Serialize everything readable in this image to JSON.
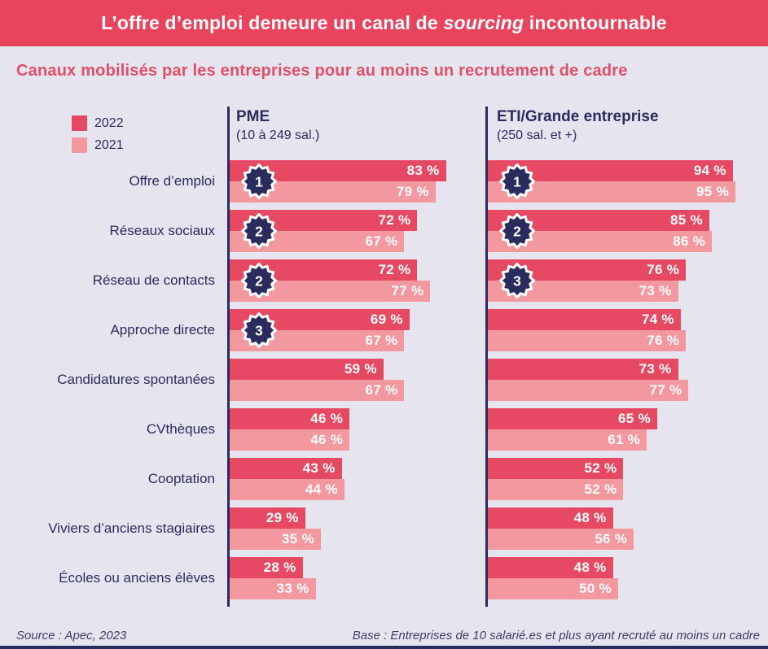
{
  "title": {
    "prefix": "L’offre d’emploi demeure un canal de ",
    "italic": "sourcing",
    "suffix": " incontournable"
  },
  "subtitle": "Canaux mobilisés par les entreprises pour au moins un recrutement de cadre",
  "legend": [
    {
      "label": "2022",
      "color": "#e64a63"
    },
    {
      "label": "2021",
      "color": "#f3989f"
    }
  ],
  "panels": [
    {
      "name": "PME",
      "sub": "(10 à 249 sal.)"
    },
    {
      "name": "ETI/Grande entreprise",
      "sub": "(250 sal. et +)"
    }
  ],
  "footer": {
    "source": "Source : Apec, 2023",
    "base": "Base : Entreprises de 10 salarié.es et plus ayant recruté au moins un cadre"
  },
  "colors": {
    "banner": "#e8445e",
    "bar_2022": "#e64a63",
    "bar_2021": "#f3989f",
    "navy": "#2b2c5e",
    "background": "#e6e4ee",
    "subtitle_text": "#e04f68"
  },
  "chart_data": {
    "type": "bar",
    "orientation": "horizontal",
    "unit": "%",
    "xlim": [
      0,
      100
    ],
    "title": "Canaux mobilisés par les entreprises pour au moins un recrutement de cadre",
    "legend_entries": [
      "2022",
      "2021"
    ],
    "legend_position": "top-left",
    "grid": false,
    "categories": [
      "Offre d’emploi",
      "Réseaux sociaux",
      "Réseau de contacts",
      "Approche directe",
      "Candidatures spontanées",
      "CVthèques",
      "Cooptation",
      "Viviers d’anciens stagiaires",
      "Écoles ou anciens élèves"
    ],
    "panels": [
      {
        "name": "PME (10 à 249 sal.)",
        "series": [
          {
            "name": "2022",
            "values": [
              83,
              72,
              72,
              69,
              59,
              46,
              43,
              29,
              28
            ]
          },
          {
            "name": "2021",
            "values": [
              79,
              67,
              77,
              67,
              67,
              46,
              44,
              35,
              33
            ]
          }
        ],
        "ranks": [
          1,
          2,
          2,
          3,
          null,
          null,
          null,
          null,
          null
        ]
      },
      {
        "name": "ETI/Grande entreprise (250 sal. et +)",
        "series": [
          {
            "name": "2022",
            "values": [
              94,
              85,
              76,
              74,
              73,
              65,
              52,
              48,
              48
            ]
          },
          {
            "name": "2021",
            "values": [
              95,
              86,
              73,
              76,
              77,
              61,
              52,
              56,
              50
            ]
          }
        ],
        "ranks": [
          1,
          2,
          3,
          null,
          null,
          null,
          null,
          null,
          null
        ]
      }
    ]
  }
}
